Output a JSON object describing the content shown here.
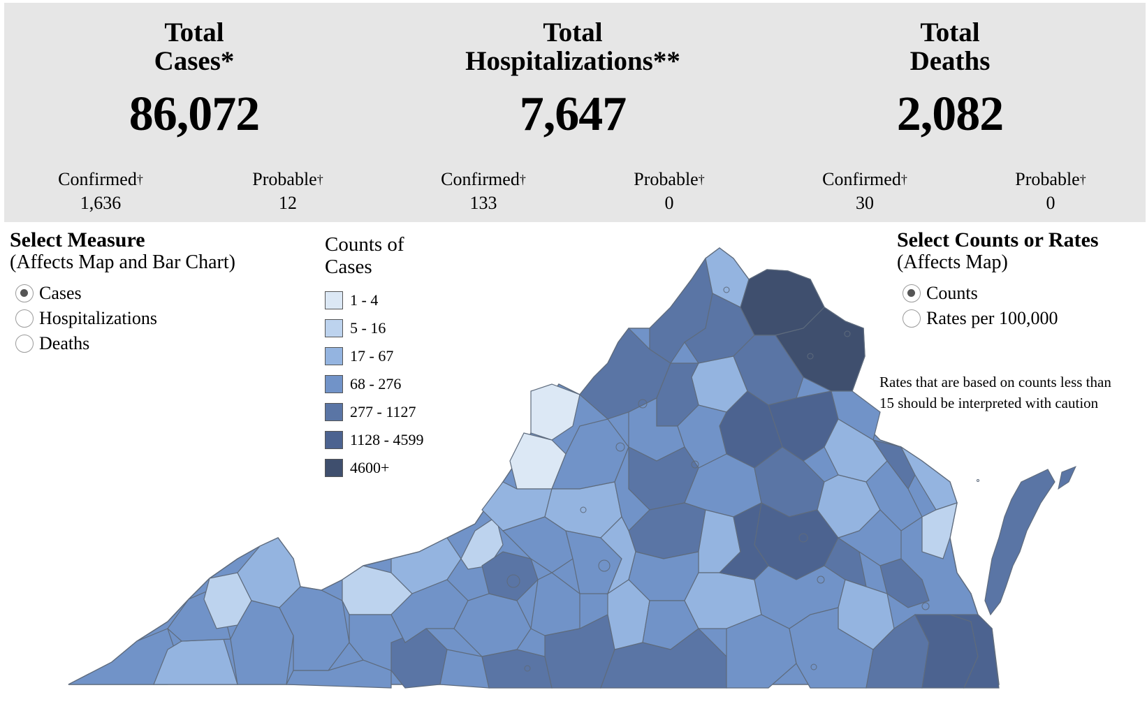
{
  "summary": {
    "cases": {
      "title": "Total\nCases*",
      "value": "86,072",
      "confirmed_label": "Confirmed",
      "confirmed_value": "1,636",
      "probable_label": "Probable",
      "probable_value": "12"
    },
    "hospitalizations": {
      "title": "Total\nHospitalizations**",
      "value": "7,647",
      "confirmed_label": "Confirmed",
      "confirmed_value": "133",
      "probable_label": "Probable",
      "probable_value": "0"
    },
    "deaths": {
      "title": "Total\nDeaths",
      "value": "2,082",
      "confirmed_label": "Confirmed",
      "confirmed_value": "30",
      "probable_label": "Probable",
      "probable_value": "0"
    },
    "dagger": "†"
  },
  "measure_control": {
    "title": "Select Measure",
    "subtitle": "(Affects Map and Bar Chart)",
    "options": [
      "Cases",
      "Hospitalizations",
      "Deaths"
    ],
    "selected": "Cases"
  },
  "legend": {
    "title": "Counts of\nCases",
    "items": [
      {
        "label": "1 - 4",
        "color": "#dce8f5"
      },
      {
        "label": "5 - 16",
        "color": "#bdd3ee"
      },
      {
        "label": "17 - 67",
        "color": "#94b4e0"
      },
      {
        "label": "68 - 276",
        "color": "#7193c8"
      },
      {
        "label": "277 - 1127",
        "color": "#5a75a5"
      },
      {
        "label": "1128 - 4599",
        "color": "#4c6390"
      },
      {
        "label": "4600+",
        "color": "#3f4f6e"
      }
    ]
  },
  "counts_rates_control": {
    "title": "Select Counts or Rates",
    "subtitle": "(Affects Map)",
    "options": [
      "Counts",
      "Rates per 100,000"
    ],
    "selected": "Counts"
  },
  "note": "Rates that are based on counts less than 15 should be interpreted with caution",
  "map": {
    "region": "Virginia",
    "stroke_color": "#5e6b7d"
  }
}
